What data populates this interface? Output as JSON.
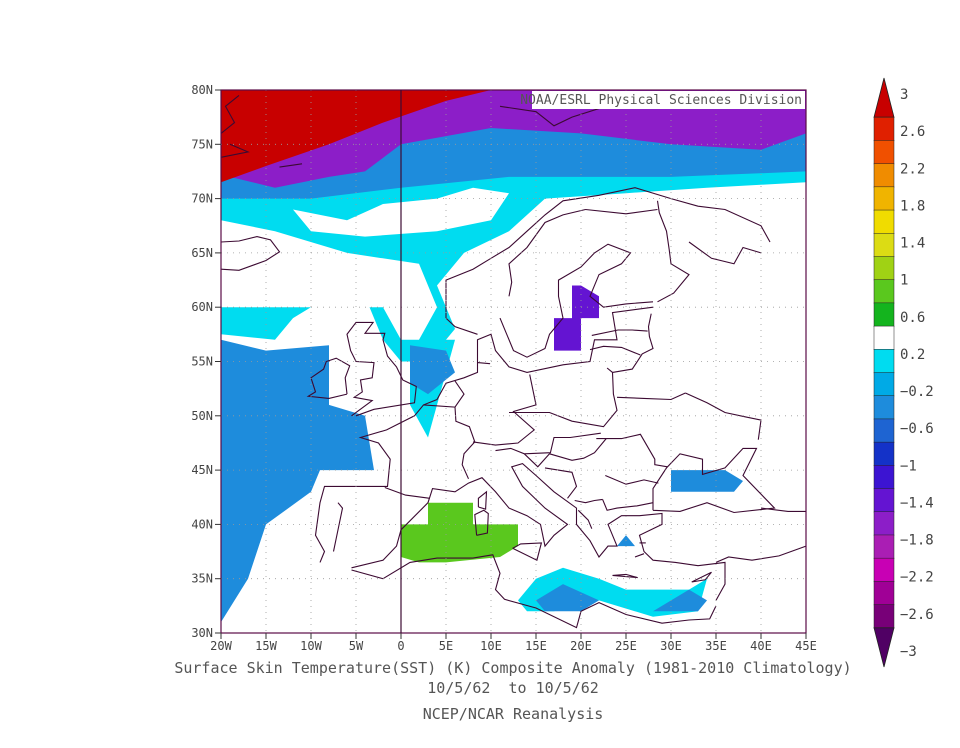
{
  "map": {
    "credit": "NOAA/ESRL Physical Sciences Division",
    "lat_labels": [
      "80N",
      "75N",
      "70N",
      "65N",
      "60N",
      "55N",
      "50N",
      "45N",
      "40N",
      "35N",
      "30N"
    ],
    "lon_labels": [
      "20W",
      "15W",
      "10W",
      "5W",
      "0",
      "5E",
      "10E",
      "15E",
      "20E",
      "25E",
      "30E",
      "35E",
      "40E",
      "45E"
    ],
    "lat_range": [
      30,
      80
    ],
    "lon_range": [
      -20,
      45
    ],
    "grid": "dotted",
    "projection": "lat-lon",
    "regions": [
      {
        "name": "arctic-positive",
        "level": 3,
        "color": "#c80000"
      },
      {
        "name": "arctic-strong-negative",
        "level": -2.2,
        "color": "#8c1ec8"
      },
      {
        "name": "north-atlantic-negative",
        "level": -0.6,
        "color": "#1e8cdc"
      },
      {
        "name": "norwegian-sea-weak-negative",
        "level": -0.2,
        "color": "#00dcf0"
      },
      {
        "name": "baltic-negative",
        "level": -1.6,
        "color": "#6414d2"
      },
      {
        "name": "sardinia-positive",
        "level": 0.8,
        "color": "#5ac81e"
      },
      {
        "name": "black-sea-negative",
        "level": -0.6,
        "color": "#1e8cdc"
      },
      {
        "name": "mediterranean-weak-negative",
        "level": -0.4,
        "color": "#00dcf0"
      }
    ]
  },
  "colorbar": {
    "levels": [
      "3",
      "2.6",
      "2.2",
      "1.8",
      "1.4",
      "1",
      "0.6",
      "0.2",
      "−0.2",
      "−0.6",
      "−1",
      "−1.4",
      "−1.8",
      "−2.2",
      "−2.6",
      "−3"
    ],
    "colors": [
      "#c80000",
      "#e02000",
      "#f05000",
      "#f08c00",
      "#f0b400",
      "#f0dc00",
      "#dcdc14",
      "#a0d214",
      "#5ac81e",
      "#14b41e",
      "#ffffff",
      "#00dcf0",
      "#00aae6",
      "#1e8cdc",
      "#1e64d2",
      "#1432c8",
      "#3c14d2",
      "#6414d2",
      "#8c1ec8",
      "#aa1eb4",
      "#c800b4",
      "#a00096",
      "#780078",
      "#500064"
    ]
  },
  "captions": {
    "line1": "Surface Skin Temperature(SST) (K) Composite Anomaly (1981-2010 Climatology)",
    "line2": "10/5/62  to 10/5/62",
    "line3": "NCEP/NCAR Reanalysis"
  }
}
